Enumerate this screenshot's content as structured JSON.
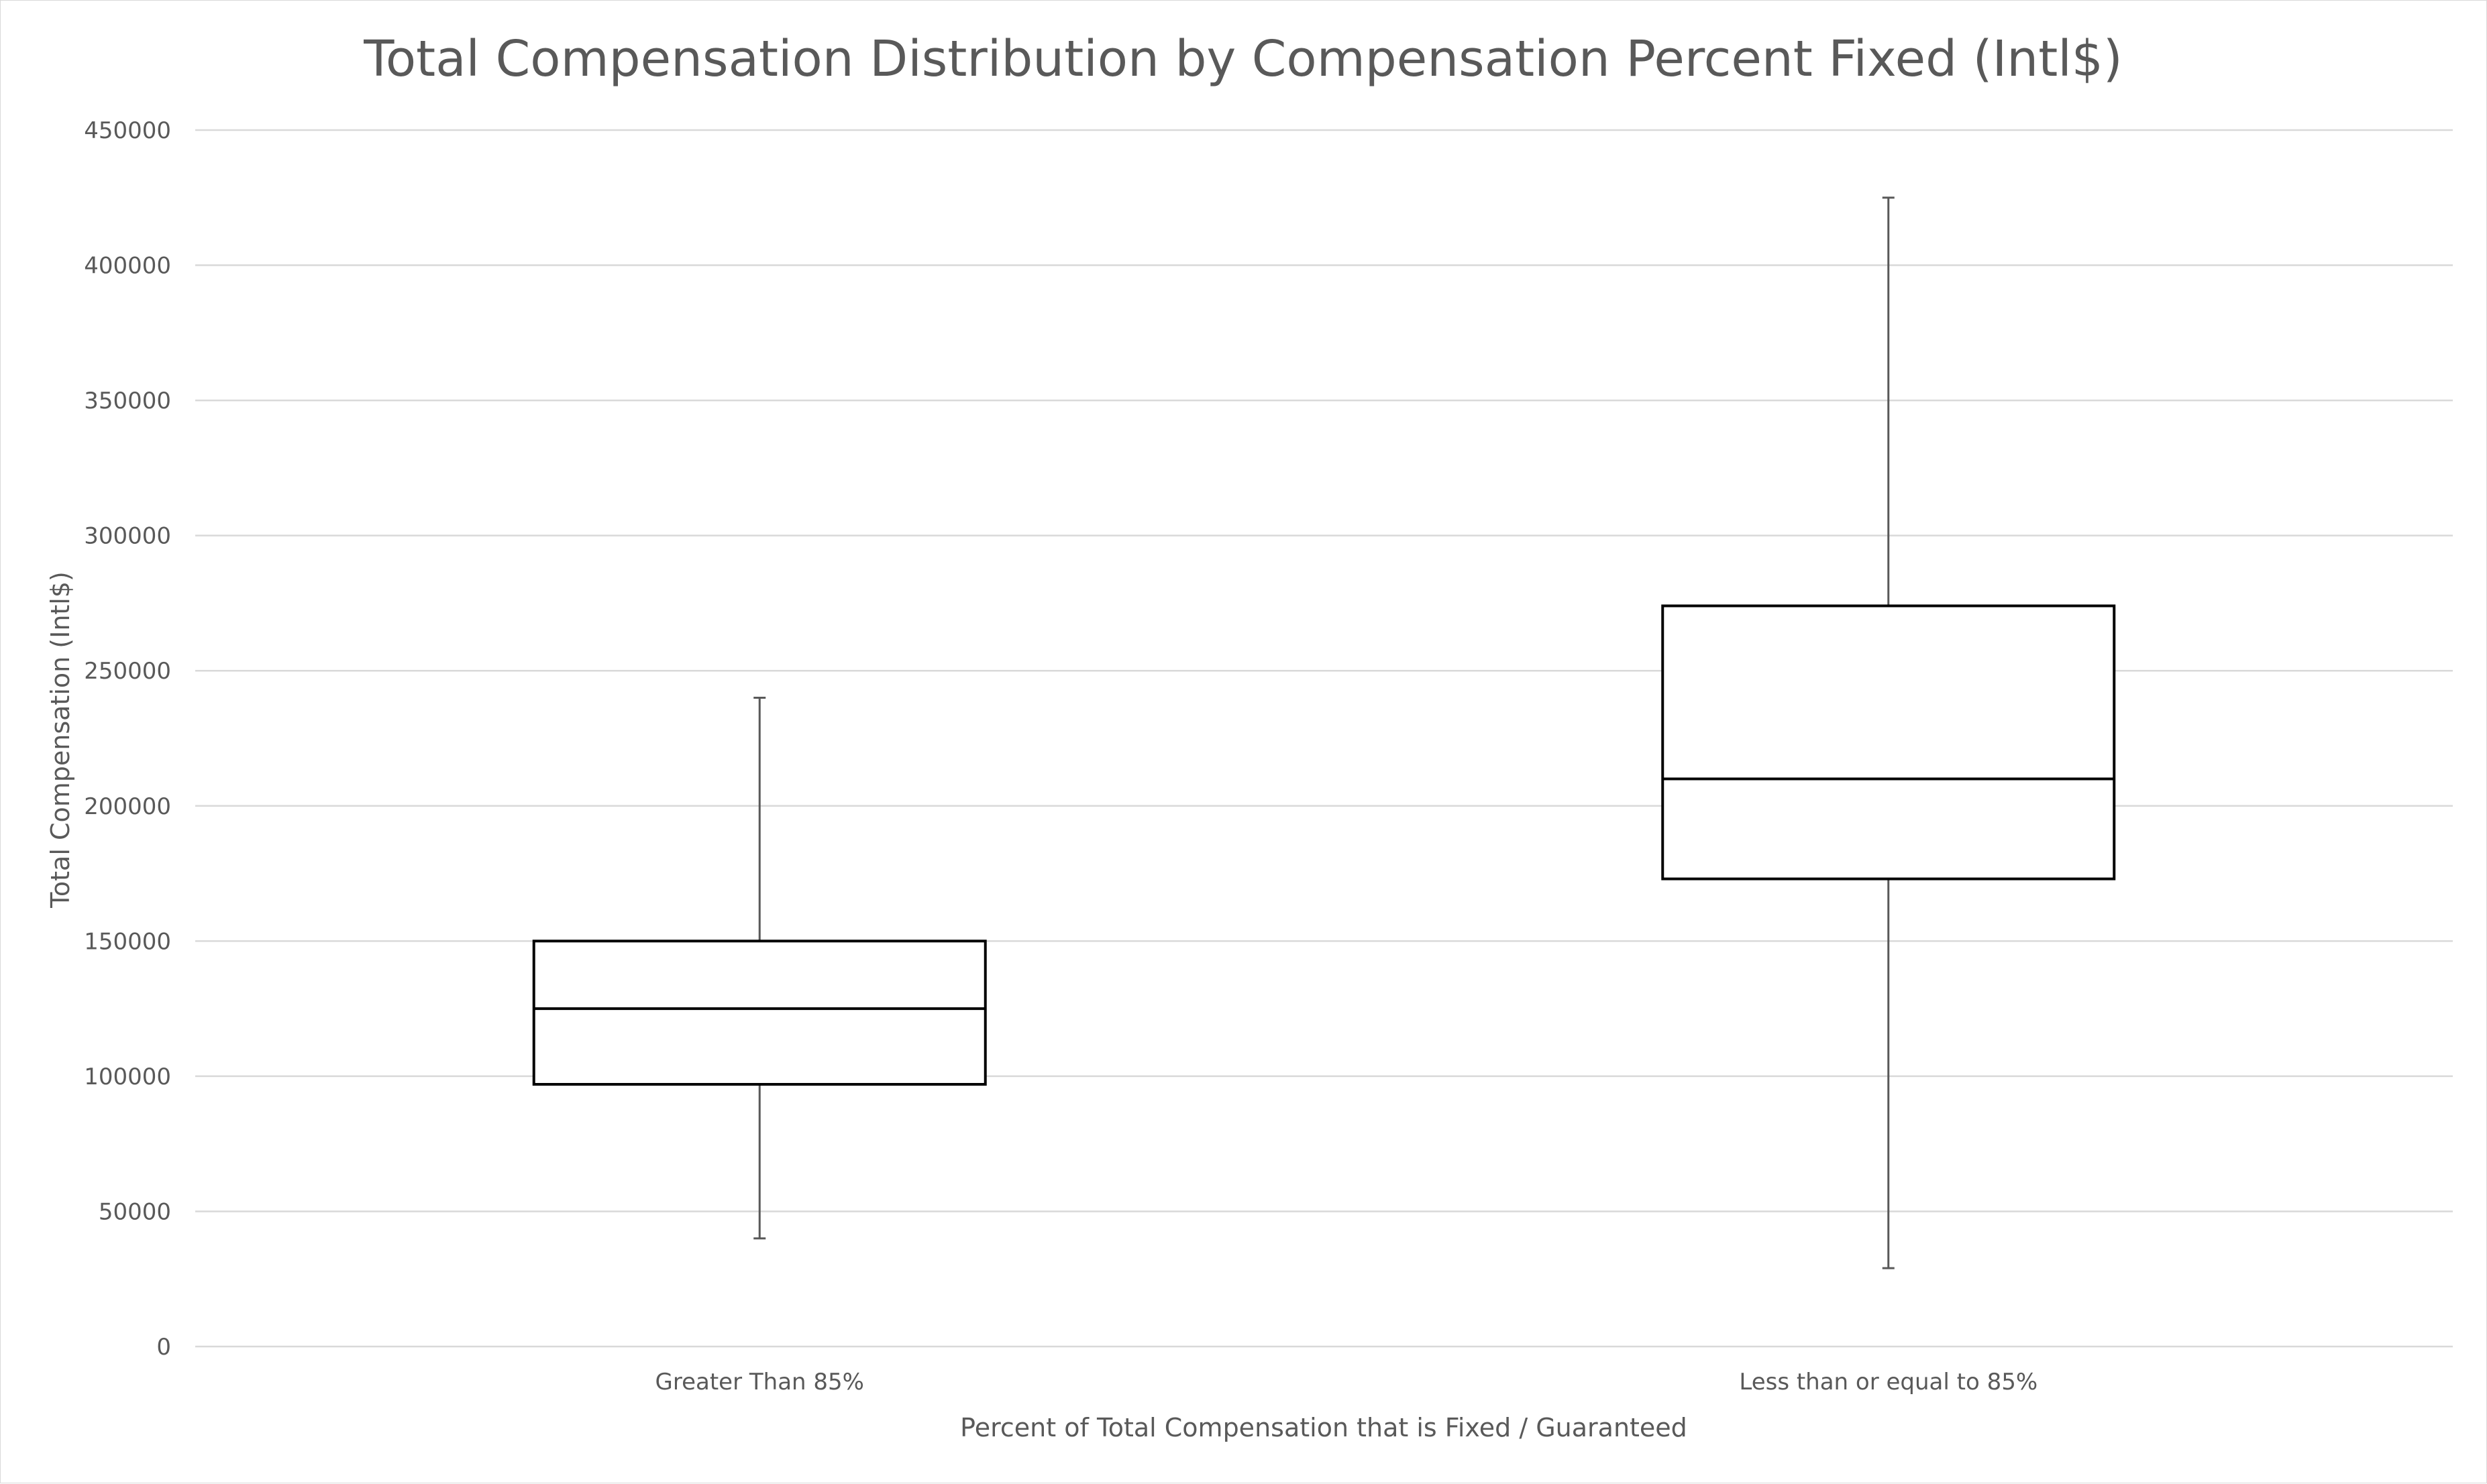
{
  "chart_data": {
    "type": "box",
    "title": "Total Compensation Distribution by Compensation Percent Fixed (Intl$)",
    "xlabel": "Percent of Total Compensation that is Fixed / Guaranteed",
    "ylabel": "Total Compensation (Intl$)",
    "ylim": [
      0,
      450000
    ],
    "yticks": [
      "0",
      "50000",
      "100000",
      "150000",
      "200000",
      "250000",
      "300000",
      "350000",
      "400000",
      "450000"
    ],
    "grid": true,
    "legend": "none",
    "categories": [
      "Greater Than 85%",
      "Less than or equal to 85%"
    ],
    "boxes": [
      {
        "category": "Greater Than 85%",
        "min": 40000,
        "q1": 97000,
        "median": 125000,
        "q3": 150000,
        "max": 240000
      },
      {
        "category": "Less than or equal to 85%",
        "min": 29000,
        "q1": 173000,
        "median": 210000,
        "q3": 274000,
        "max": 425000
      }
    ]
  }
}
